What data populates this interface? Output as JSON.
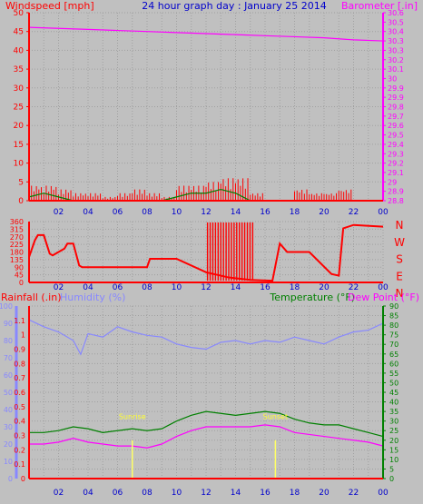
{
  "title": "24 hour graph day : January 25 2014",
  "chart_data": [
    {
      "type": "line",
      "title": "24 hour graph day : January 25 2014",
      "y_left_label": "Windspeed [mph]",
      "y_right_label": "Barometer [.in]",
      "y_left_ticks": [
        "0",
        "5",
        "10",
        "15",
        "20",
        "25",
        "30",
        "35",
        "40",
        "45",
        "50"
      ],
      "y_left_range": [
        0,
        50
      ],
      "y_right_ticks": [
        "28.8",
        "28.9",
        "29",
        "29.1",
        "29.2",
        "29.3",
        "29.4",
        "29.5",
        "29.6",
        "29.7",
        "29.8",
        "29.9",
        "29.9",
        "30",
        "30.1",
        "30.2",
        "30.3",
        "30.3",
        "30.4",
        "30.5",
        "30.6"
      ],
      "y_right_range": [
        28.8,
        30.6
      ],
      "x_ticks": [
        "02",
        "04",
        "06",
        "08",
        "10",
        "12",
        "14",
        "16",
        "18",
        "20",
        "22",
        "00"
      ],
      "grid": true,
      "series": [
        {
          "name": "Barometer [.in]",
          "axis": "right",
          "color": "#ff00ff",
          "x": [
            0,
            2,
            4,
            6,
            8,
            10,
            12,
            14,
            16,
            18,
            20,
            22,
            24
          ],
          "values": [
            30.46,
            30.45,
            30.44,
            30.43,
            30.42,
            30.41,
            30.4,
            30.39,
            30.38,
            30.37,
            30.36,
            30.34,
            30.33
          ]
        },
        {
          "axis": "left",
          "color": "#ff0000",
          "style": "gust-bars",
          "x": [
            0,
            1,
            2,
            3,
            4,
            5,
            6,
            7,
            8,
            9,
            10,
            11,
            12,
            13,
            14,
            15,
            16,
            17,
            18,
            19,
            20,
            21,
            22,
            23,
            24
          ],
          "values": [
            4,
            4,
            3,
            2,
            2,
            1,
            2,
            3,
            2,
            1,
            4,
            4,
            5,
            6,
            6,
            2,
            0,
            0,
            3,
            2,
            2,
            3,
            0,
            0,
            0
          ]
        },
        {
          "axis": "left",
          "color": "#008000",
          "style": "average",
          "x": [
            0,
            1,
            2,
            3,
            4,
            5,
            6,
            7,
            8,
            9,
            10,
            11,
            12,
            13,
            14,
            15,
            16
          ],
          "values": [
            1,
            2,
            1,
            0,
            0,
            0,
            0,
            0,
            0,
            0,
            1,
            2,
            2,
            3,
            2,
            0,
            0
          ]
        }
      ]
    },
    {
      "type": "line",
      "y_left_ticks": [
        "0",
        "45",
        "90",
        "135",
        "180",
        "225",
        "270",
        "315",
        "360"
      ],
      "y_left_range": [
        0,
        360
      ],
      "y_right_ticks": [
        "N",
        "W",
        "S",
        "E",
        "N"
      ],
      "x_ticks": [
        "02",
        "04",
        "06",
        "08",
        "10",
        "12",
        "14",
        "16",
        "18",
        "20",
        "22",
        "00"
      ],
      "grid": true,
      "series": [
        {
          "color": "#ff0000",
          "x": [
            0,
            0.4,
            0.6,
            1.0,
            1.4,
            1.6,
            2.0,
            2.4,
            2.6,
            3.0,
            3.4,
            3.6,
            4.0,
            6.0,
            8.0,
            8.2,
            10.0,
            12.0,
            13.5,
            15.0,
            16.5,
            17.0,
            17.5,
            19.0,
            20.5,
            21.0,
            21.3,
            22.0,
            24.0
          ],
          "values": [
            150,
            250,
            280,
            280,
            170,
            160,
            180,
            200,
            230,
            230,
            100,
            90,
            90,
            90,
            90,
            140,
            140,
            60,
            30,
            15,
            10,
            230,
            180,
            180,
            50,
            40,
            320,
            340,
            330
          ]
        }
      ]
    },
    {
      "type": "line",
      "y_left_label": "Rainfall (.in)",
      "y_left2_label": "Humidity (%)",
      "y_right_label": "Temperature (°F)",
      "y_right2_label": "Dew Point (°F)",
      "y_rain_ticks": [
        "0",
        "0.1",
        "0.2",
        "0.3",
        "0.4",
        "0.5",
        "0.6",
        "0.7",
        "0.8",
        "0.9",
        "1",
        "1.1"
      ],
      "y_rain_range": [
        0,
        1.2
      ],
      "y_humidity_ticks": [
        "0",
        "10",
        "20",
        "30",
        "40",
        "50",
        "60",
        "70",
        "80",
        "90",
        "100"
      ],
      "y_humidity_range": [
        0,
        100
      ],
      "y_temp_ticks": [
        "0",
        "5",
        "10",
        "15",
        "20",
        "25",
        "30",
        "35",
        "40",
        "45",
        "50",
        "55",
        "60",
        "65",
        "70",
        "75",
        "80",
        "85",
        "90"
      ],
      "y_temp_range": [
        0,
        90
      ],
      "x_ticks": [
        "02",
        "04",
        "06",
        "08",
        "10",
        "12",
        "14",
        "16",
        "18",
        "20",
        "22",
        "00"
      ],
      "grid": true,
      "annotations": [
        {
          "label": "Sunrise",
          "x": 7.0
        },
        {
          "label": "Sunset",
          "x": 16.7
        }
      ],
      "series": [
        {
          "name": "Humidity (%)",
          "axis": "humidity",
          "color": "#8888ff",
          "x": [
            0,
            1,
            2,
            3,
            3.5,
            4,
            5,
            6,
            7,
            8,
            9,
            10,
            11,
            12,
            13,
            14,
            15,
            16,
            17,
            18,
            19,
            20,
            21,
            22,
            23,
            24
          ],
          "values": [
            92,
            88,
            85,
            80,
            72,
            84,
            82,
            88,
            85,
            83,
            82,
            78,
            76,
            75,
            79,
            80,
            78,
            80,
            79,
            82,
            80,
            78,
            82,
            85,
            86,
            90
          ]
        },
        {
          "name": "Temperature (°F)",
          "axis": "temp",
          "color": "#008000",
          "x": [
            0,
            1,
            2,
            3,
            4,
            5,
            6,
            7,
            8,
            9,
            10,
            11,
            12,
            13,
            14,
            15,
            16,
            17,
            18,
            19,
            20,
            21,
            22,
            23,
            24
          ],
          "values": [
            24,
            24,
            25,
            27,
            26,
            24,
            25,
            26,
            25,
            26,
            30,
            33,
            35,
            34,
            33,
            34,
            35,
            34,
            31,
            29,
            28,
            28,
            26,
            24,
            22
          ]
        },
        {
          "name": "Dew Point (°F)",
          "axis": "temp",
          "color": "#ff00ff",
          "x": [
            0,
            1,
            2,
            3,
            4,
            5,
            6,
            7,
            8,
            9,
            10,
            11,
            12,
            13,
            14,
            15,
            16,
            17,
            18,
            19,
            20,
            21,
            22,
            23,
            24
          ],
          "values": [
            18,
            18,
            19,
            21,
            19,
            18,
            17,
            17,
            16,
            18,
            22,
            25,
            27,
            27,
            27,
            27,
            28,
            27,
            24,
            23,
            22,
            21,
            20,
            19,
            17
          ]
        },
        {
          "name": "Rainfall (.in)",
          "axis": "rain",
          "color": "#ff0000",
          "x": [
            0,
            24
          ],
          "values": [
            0,
            0
          ]
        }
      ]
    }
  ]
}
